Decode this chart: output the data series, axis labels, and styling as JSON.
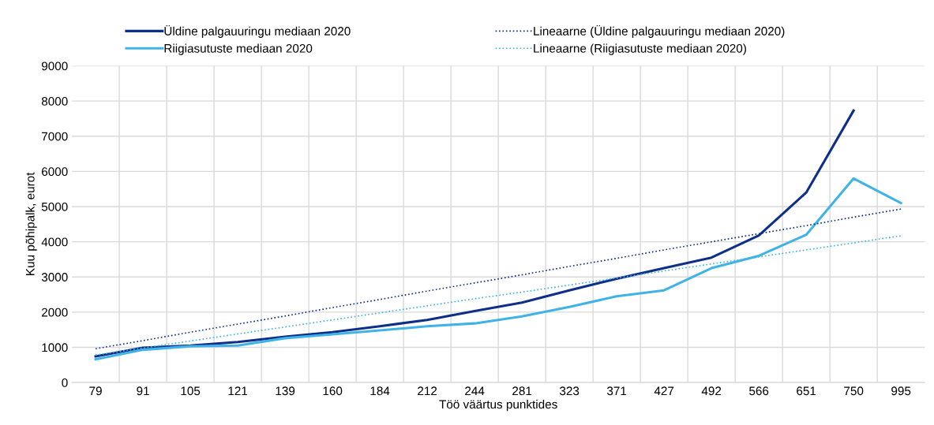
{
  "chart_data": {
    "type": "line",
    "xlabel": "Töö väärtus punktides",
    "ylabel": "Kuu põhipalk, eurot",
    "categories": [
      "79",
      "91",
      "105",
      "121",
      "139",
      "160",
      "184",
      "212",
      "244",
      "281",
      "323",
      "371",
      "427",
      "492",
      "566",
      "651",
      "750",
      "995"
    ],
    "series": [
      {
        "name": "Üldine palgauuringu mediaan 2020",
        "color": "#0e2f87",
        "line_style": "solid",
        "values": [
          740,
          990,
          1050,
          1150,
          1300,
          1430,
          1600,
          1780,
          2030,
          2270,
          2620,
          2950,
          3250,
          3550,
          4180,
          5400,
          7730,
          null
        ]
      },
      {
        "name": "Riigiasutuste mediaan 2020",
        "color": "#3fb3e6",
        "line_style": "solid",
        "values": [
          660,
          930,
          1030,
          1050,
          1260,
          1370,
          1480,
          1600,
          1680,
          1880,
          2150,
          2450,
          2620,
          3250,
          3600,
          4200,
          5800,
          5100
        ]
      },
      {
        "name": "Lineaarne (Üldine palgauuringu mediaan 2020)",
        "color": "#0e2f87",
        "line_style": "dotted",
        "values": [
          960,
          1190,
          1430,
          1660,
          1890,
          2130,
          2360,
          2600,
          2830,
          3060,
          3300,
          3530,
          3770,
          4000,
          4230,
          4460,
          4700,
          4930
        ]
      },
      {
        "name": "Lineaarne (Riigiasutuste mediaan 2020)",
        "color": "#3fb3e6",
        "line_style": "dotted",
        "values": [
          780,
          980,
          1180,
          1380,
          1580,
          1780,
          1980,
          2180,
          2380,
          2570,
          2770,
          2970,
          3170,
          3370,
          3570,
          3770,
          3970,
          4170
        ]
      }
    ],
    "ylim": [
      0,
      9000
    ],
    "yticks": [
      0,
      1000,
      2000,
      3000,
      4000,
      5000,
      6000,
      7000,
      8000,
      9000
    ],
    "grid": true,
    "legend": "top",
    "marker": "none"
  }
}
